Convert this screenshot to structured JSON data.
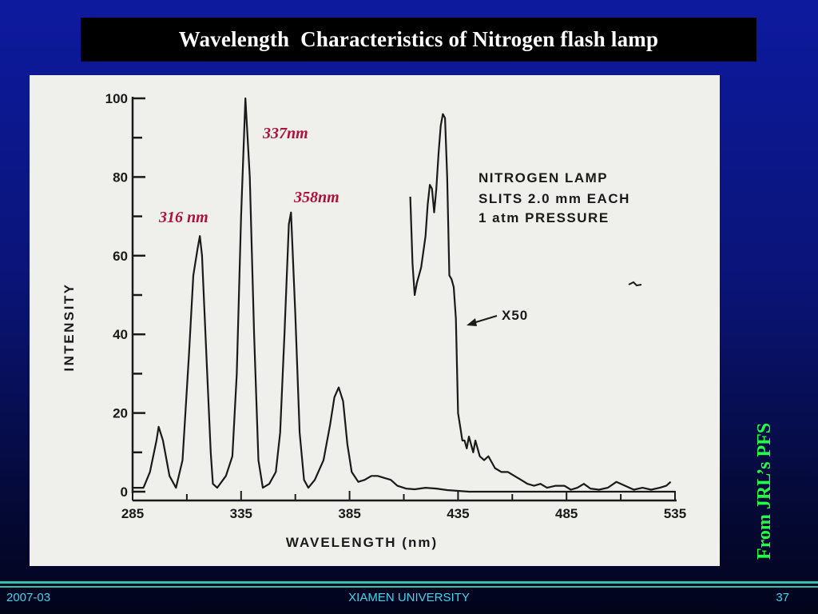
{
  "slide": {
    "title": "Wavelength  Characteristics of Nitrogen flash lamp",
    "side_credit": "From JRL’s PFS",
    "footer": {
      "date": "2007-03",
      "organization": "XIAMEN UNIVERSITY",
      "page": "37"
    },
    "theme": {
      "background": "#0a1478",
      "title_bg": "#000000",
      "credit_color": "#22ff44",
      "footer_color": "#3ed6f0",
      "accent_line": "#2ec4a8"
    }
  },
  "chart_data": {
    "type": "line",
    "title": "",
    "xlabel": "WAVELENGTH (nm)",
    "ylabel": "INTENSITY",
    "xlim": [
      285,
      535
    ],
    "ylim": [
      0,
      100
    ],
    "x_ticks": [
      285,
      335,
      385,
      435,
      485,
      535
    ],
    "y_ticks": [
      0,
      20,
      40,
      60,
      80,
      100
    ],
    "grid": false,
    "info_text": [
      "NITROGEN LAMP",
      "SLITS 2.0 mm EACH",
      "1 atm PRESSURE"
    ],
    "peak_labels": [
      {
        "text": "316 nm",
        "x": 316,
        "y": 66
      },
      {
        "text": "337nm",
        "x": 337,
        "y": 100
      },
      {
        "text": "358nm",
        "x": 358,
        "y": 71
      }
    ],
    "x50_label": "X50",
    "series": [
      {
        "values": [
          [
            285,
            1
          ],
          [
            290,
            1
          ],
          [
            293,
            5
          ],
          [
            296,
            13
          ],
          [
            297,
            16.5
          ],
          [
            299,
            13
          ],
          [
            302,
            4
          ],
          [
            305,
            1
          ],
          [
            308,
            8
          ],
          [
            311,
            35
          ],
          [
            313,
            55
          ],
          [
            315,
            62
          ],
          [
            316,
            65
          ],
          [
            317,
            60
          ],
          [
            319,
            35
          ],
          [
            321,
            10
          ],
          [
            322,
            2
          ],
          [
            324,
            1
          ],
          [
            328,
            4
          ],
          [
            331,
            9
          ],
          [
            333,
            30
          ],
          [
            335,
            70
          ],
          [
            337,
            100
          ],
          [
            339,
            80
          ],
          [
            341,
            40
          ],
          [
            343,
            8
          ],
          [
            345,
            1
          ],
          [
            348,
            2
          ],
          [
            351,
            5
          ],
          [
            353,
            15
          ],
          [
            355,
            40
          ],
          [
            357,
            68
          ],
          [
            358,
            71
          ],
          [
            360,
            45
          ],
          [
            362,
            15
          ],
          [
            364,
            3
          ],
          [
            366,
            1
          ],
          [
            369,
            3
          ],
          [
            373,
            8
          ],
          [
            376,
            17
          ],
          [
            378,
            24
          ],
          [
            380,
            26.5
          ],
          [
            382,
            23
          ],
          [
            384,
            12
          ],
          [
            386,
            5
          ],
          [
            389,
            2.5
          ],
          [
            392,
            3
          ],
          [
            395,
            4
          ],
          [
            398,
            4
          ],
          [
            401,
            3.5
          ],
          [
            404,
            3
          ],
          [
            407,
            1.5
          ],
          [
            411,
            0.8
          ],
          [
            415,
            0.6
          ],
          [
            420,
            1
          ],
          [
            425,
            0.8
          ],
          [
            430,
            0.4
          ],
          [
            440,
            0
          ],
          [
            535,
            0
          ]
        ]
      },
      {
        "scale": "X50",
        "values": [
          [
            413,
            75
          ],
          [
            414,
            58
          ],
          [
            415,
            50
          ],
          [
            416,
            53
          ],
          [
            418,
            57
          ],
          [
            420,
            65
          ],
          [
            421,
            73
          ],
          [
            422,
            78
          ],
          [
            423,
            77
          ],
          [
            424,
            71
          ],
          [
            425,
            77
          ],
          [
            426,
            86
          ],
          [
            427,
            93
          ],
          [
            428,
            96
          ],
          [
            429,
            95
          ],
          [
            430,
            80
          ],
          [
            431,
            55
          ],
          [
            432,
            54
          ],
          [
            433,
            52
          ],
          [
            434,
            44
          ],
          [
            435,
            20
          ],
          [
            437,
            13
          ],
          [
            438,
            13
          ],
          [
            439,
            11
          ],
          [
            440,
            14
          ],
          [
            442,
            10
          ],
          [
            443,
            13
          ],
          [
            445,
            9
          ],
          [
            447,
            8
          ],
          [
            449,
            9
          ],
          [
            452,
            6
          ],
          [
            455,
            5
          ],
          [
            458,
            5
          ],
          [
            461,
            4
          ],
          [
            464,
            3
          ],
          [
            467,
            2
          ],
          [
            470,
            1.5
          ],
          [
            473,
            2
          ],
          [
            476,
            1
          ],
          [
            480,
            1.5
          ],
          [
            484,
            1.5
          ],
          [
            487,
            0.5
          ],
          [
            490,
            1
          ],
          [
            493,
            2
          ],
          [
            496,
            0.8
          ],
          [
            500,
            0.5
          ],
          [
            504,
            1
          ],
          [
            508,
            2.5
          ],
          [
            512,
            1.5
          ],
          [
            516,
            0.5
          ],
          [
            520,
            1
          ],
          [
            524,
            0.5
          ],
          [
            528,
            1
          ],
          [
            531,
            1.5
          ],
          [
            533,
            2.5
          ]
        ]
      }
    ]
  }
}
